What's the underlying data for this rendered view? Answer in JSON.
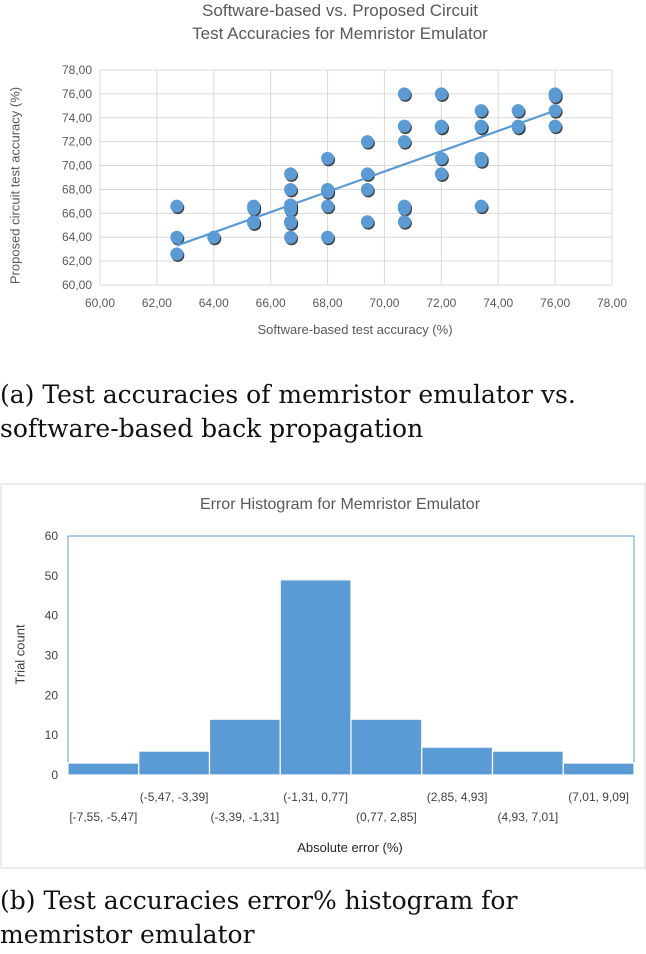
{
  "captions": {
    "a": "(a) Test accuracies of memristor emulator vs. software-based back propagation",
    "b": "(b) Test accuracies error% histogram for memristor emulator"
  },
  "chart_data": [
    {
      "type": "scatter",
      "title_line1": "Software-based vs. Proposed Circuit",
      "title_line2": "Test Accuracies for Memristor Emulator",
      "xlabel": "Software-based test accuracy (%)",
      "ylabel": "Proposed circuit test accuracy (%)",
      "xlim": [
        60,
        78
      ],
      "ylim": [
        60,
        78
      ],
      "xticks": [
        "60,00",
        "62,00",
        "64,00",
        "66,00",
        "68,00",
        "70,00",
        "72,00",
        "74,00",
        "76,00",
        "78,00"
      ],
      "yticks": [
        "60,00",
        "62,00",
        "64,00",
        "66,00",
        "68,00",
        "70,00",
        "72,00",
        "74,00",
        "76,00",
        "78,00"
      ],
      "grid": true,
      "point_color": "#5b9bd5",
      "trendline": {
        "x": [
          62.7,
          76.0
        ],
        "y": [
          63.3,
          74.6
        ],
        "color": "#5b9bd5"
      },
      "points": [
        {
          "x": 62.7,
          "y": 66.6
        },
        {
          "x": 62.7,
          "y": 64.0
        },
        {
          "x": 62.7,
          "y": 62.6
        },
        {
          "x": 64.0,
          "y": 64.0
        },
        {
          "x": 65.4,
          "y": 66.6
        },
        {
          "x": 65.4,
          "y": 66.4
        },
        {
          "x": 65.4,
          "y": 65.3
        },
        {
          "x": 65.4,
          "y": 65.2
        },
        {
          "x": 66.7,
          "y": 69.3
        },
        {
          "x": 66.7,
          "y": 68.0
        },
        {
          "x": 66.7,
          "y": 66.7
        },
        {
          "x": 66.7,
          "y": 66.5
        },
        {
          "x": 66.7,
          "y": 66.3
        },
        {
          "x": 66.7,
          "y": 65.3
        },
        {
          "x": 66.7,
          "y": 65.2
        },
        {
          "x": 66.7,
          "y": 64.0
        },
        {
          "x": 68.0,
          "y": 70.6
        },
        {
          "x": 68.0,
          "y": 68.0
        },
        {
          "x": 68.0,
          "y": 67.8
        },
        {
          "x": 68.0,
          "y": 66.6
        },
        {
          "x": 68.0,
          "y": 64.0
        },
        {
          "x": 69.4,
          "y": 72.0
        },
        {
          "x": 69.4,
          "y": 69.3
        },
        {
          "x": 69.4,
          "y": 68.0
        },
        {
          "x": 69.4,
          "y": 65.3
        },
        {
          "x": 70.7,
          "y": 76.0
        },
        {
          "x": 70.7,
          "y": 73.3
        },
        {
          "x": 70.7,
          "y": 72.0
        },
        {
          "x": 70.7,
          "y": 66.6
        },
        {
          "x": 70.7,
          "y": 66.4
        },
        {
          "x": 70.7,
          "y": 65.3
        },
        {
          "x": 72.0,
          "y": 76.0
        },
        {
          "x": 72.0,
          "y": 73.3
        },
        {
          "x": 72.0,
          "y": 73.2
        },
        {
          "x": 72.0,
          "y": 70.6
        },
        {
          "x": 72.0,
          "y": 69.3
        },
        {
          "x": 73.4,
          "y": 74.6
        },
        {
          "x": 73.4,
          "y": 73.3
        },
        {
          "x": 73.4,
          "y": 73.2
        },
        {
          "x": 73.4,
          "y": 70.6
        },
        {
          "x": 73.4,
          "y": 70.4
        },
        {
          "x": 73.4,
          "y": 66.6
        },
        {
          "x": 74.7,
          "y": 74.6
        },
        {
          "x": 74.7,
          "y": 73.3
        },
        {
          "x": 74.7,
          "y": 73.2
        },
        {
          "x": 76.0,
          "y": 76.0
        },
        {
          "x": 76.0,
          "y": 75.8
        },
        {
          "x": 76.0,
          "y": 74.6
        },
        {
          "x": 76.0,
          "y": 73.3
        }
      ]
    },
    {
      "type": "bar",
      "title": "Error Histogram for Memristor Emulator",
      "xlabel": "Absolute error (%)",
      "ylabel": "Trial count",
      "ylim": [
        0,
        60
      ],
      "yticks": [
        "0",
        "10",
        "20",
        "30",
        "40",
        "50",
        "60"
      ],
      "bar_color": "#5b9bd5",
      "categories": [
        "[-7,55, -5,47]",
        "(-5,47, -3,39]",
        "(-3,39, -1,31]",
        "(-1,31, 0,77]",
        "(0,77, 2,85]",
        "(2,85, 4,93]",
        "(4,93, 7,01]",
        "(7,01, 9,09]"
      ],
      "values": [
        3,
        6,
        14,
        49,
        14,
        7,
        6,
        3
      ]
    }
  ]
}
